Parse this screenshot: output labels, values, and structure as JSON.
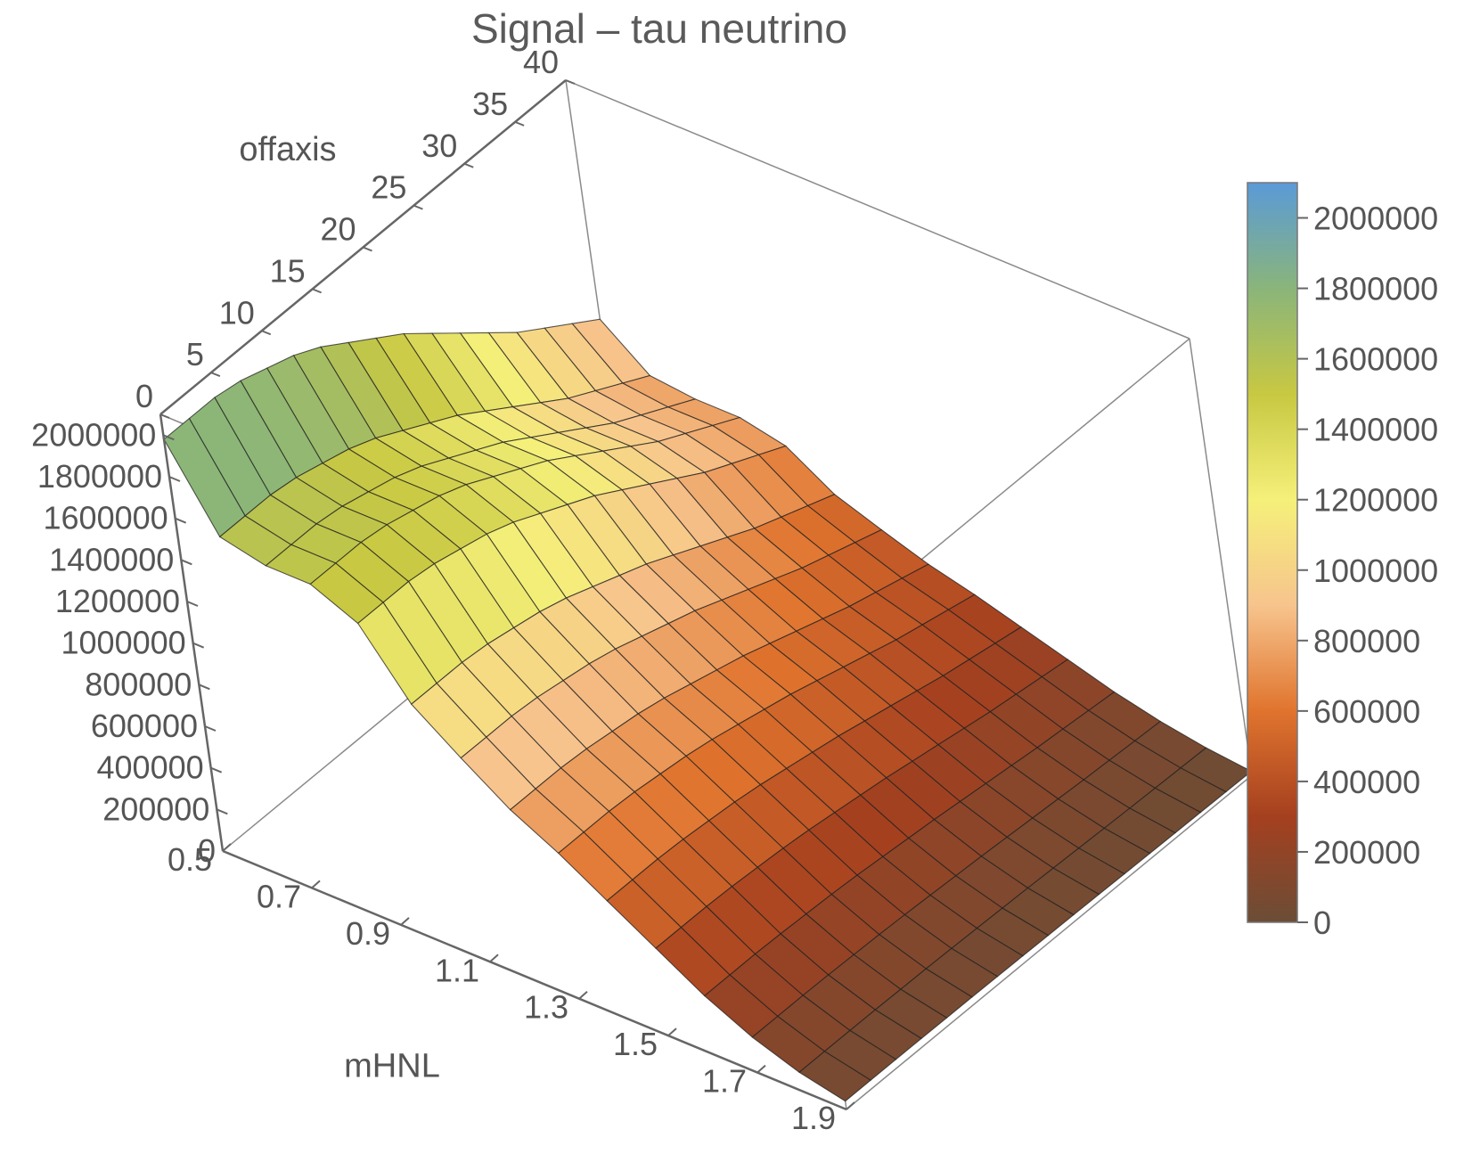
{
  "chart_data": {
    "type": "surface3d",
    "title": "Signal – tau neutrino",
    "x_axis": {
      "label": "mHNL",
      "range": [
        0.5,
        1.9
      ],
      "ticks": [
        "0.5",
        "0.7",
        "0.9",
        "1.1",
        "1.3",
        "1.5",
        "1.7",
        "1.9"
      ]
    },
    "y_axis": {
      "label": "offaxis",
      "range": [
        0,
        40
      ],
      "ticks": [
        "0",
        "5",
        "10",
        "15",
        "20",
        "25",
        "30",
        "35",
        "40"
      ]
    },
    "z_axis": {
      "label": "",
      "range": [
        0,
        2100000
      ],
      "ticks": [
        "0",
        "200000",
        "400000",
        "600000",
        "800000",
        "1000000",
        "1200000",
        "1400000",
        "1600000",
        "1800000",
        "2000000"
      ]
    },
    "colorbar": {
      "range": [
        0,
        2100000
      ],
      "ticks": [
        "0",
        "200000",
        "400000",
        "600000",
        "800000",
        "1000000",
        "1200000",
        "1400000",
        "1600000",
        "1800000",
        "2000000"
      ],
      "colors": [
        "#6b4d36",
        "#a5401f",
        "#e0742e",
        "#f7c48d",
        "#f5f07a",
        "#c8c842",
        "#8ab57a",
        "#5a9ad8"
      ]
    },
    "grid_x": [
      0.5,
      0.6,
      0.7,
      0.8,
      0.9,
      1.0,
      1.1,
      1.2,
      1.3,
      1.4,
      1.5,
      1.6,
      1.7,
      1.8,
      1.9
    ],
    "grid_y": [
      0,
      2.5,
      5,
      7.5,
      10,
      12.5,
      15,
      17.5,
      20,
      22.5,
      25,
      27.5,
      30,
      32.5,
      35,
      37.5,
      40
    ],
    "z_at_offaxis_0": [
      1980000,
      1600000,
      1550000,
      1550000,
      1450000,
      1150000,
      980000,
      820000,
      700000,
      560000,
      420000,
      280000,
      170000,
      90000,
      40000
    ],
    "offaxis_profile": [
      1.0,
      1.0,
      1.0,
      0.99,
      0.97,
      0.95,
      0.92,
      0.88,
      0.84,
      0.8,
      0.75,
      0.7,
      0.65,
      0.6,
      0.56,
      0.52,
      0.48
    ]
  }
}
